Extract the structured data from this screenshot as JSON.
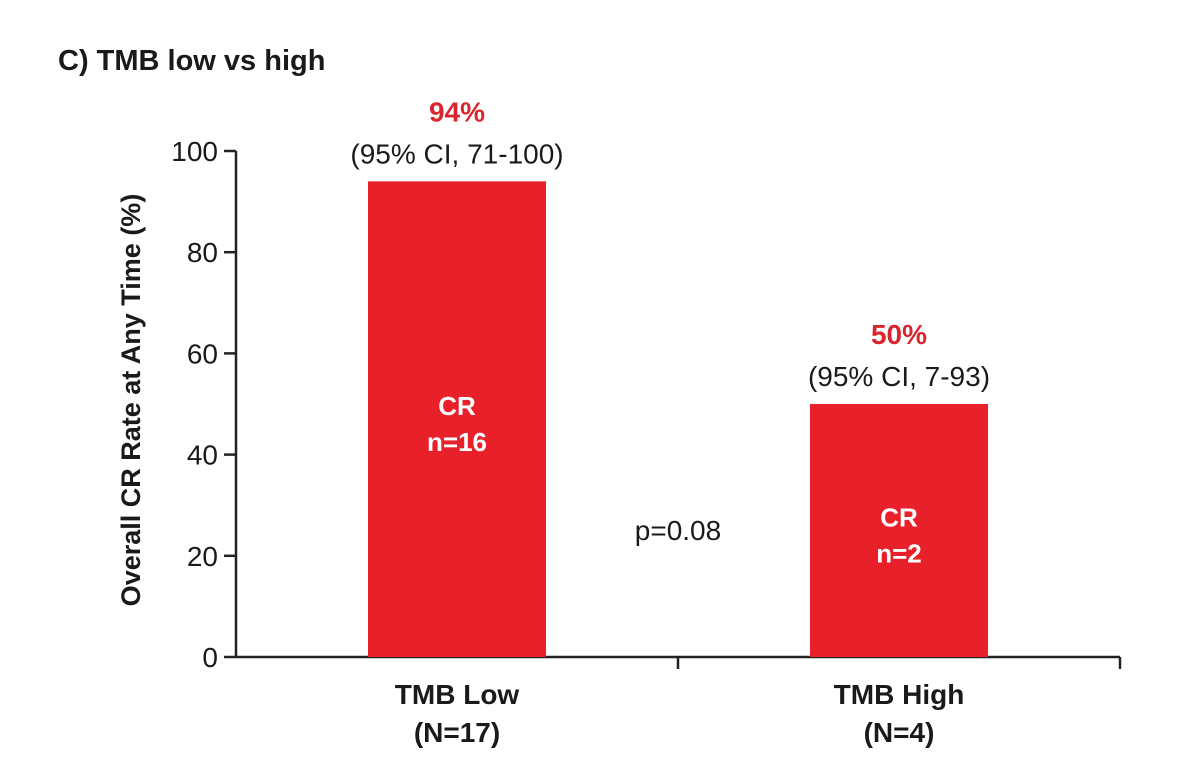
{
  "chart_data": {
    "type": "bar",
    "title": "C) TMB low vs high",
    "ylabel": "Overall CR Rate at Any Time (%)",
    "xlabel": "",
    "ylim": [
      0,
      100
    ],
    "yticks": [
      0,
      20,
      40,
      60,
      80,
      100
    ],
    "grid": false,
    "bar_color": "#e8202a",
    "label_color": "#d9262e",
    "categories": [
      {
        "name": "TMB Low",
        "n_label": "(N=17)"
      },
      {
        "name": "TMB High",
        "n_label": "(N=4)"
      }
    ],
    "values": [
      94,
      50
    ],
    "value_labels": [
      "94%",
      "50%"
    ],
    "ci_labels": [
      "(95% CI, 71-100)",
      "(95% CI, 7-93)"
    ],
    "inbar_labels": [
      [
        "CR",
        "n=16"
      ],
      [
        "CR",
        "n=2"
      ]
    ],
    "annotation": "p=0.08"
  }
}
